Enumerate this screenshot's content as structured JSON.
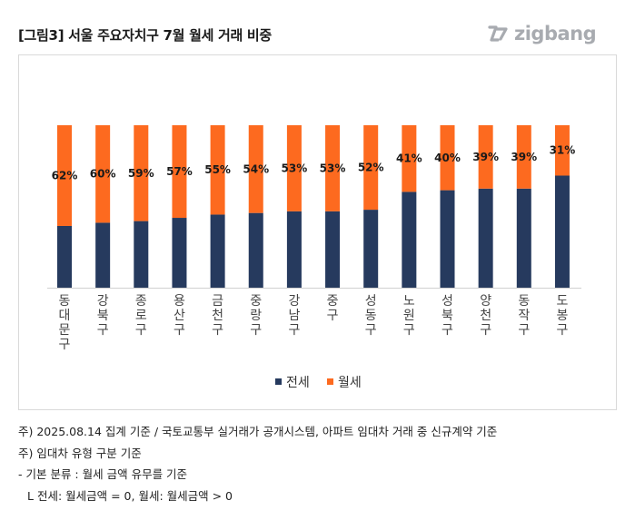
{
  "header": {
    "title": "[그림3] 서울 주요자치구 7월 월세 거래 비중",
    "logo_text": "zigbang"
  },
  "chart_data": {
    "type": "bar",
    "stacked": "percent",
    "categories": [
      "동대문구",
      "강북구",
      "종로구",
      "용산구",
      "금천구",
      "중랑구",
      "강남구",
      "중구",
      "성동구",
      "노원구",
      "성북구",
      "양천구",
      "동작구",
      "도봉구"
    ],
    "series": [
      {
        "name": "전세",
        "color": "#263a5e",
        "values": [
          38,
          40,
          41,
          43,
          45,
          46,
          47,
          47,
          48,
          59,
          60,
          61,
          61,
          69
        ]
      },
      {
        "name": "월세",
        "color": "#fd6a1f",
        "values": [
          62,
          60,
          59,
          57,
          55,
          54,
          53,
          53,
          52,
          41,
          40,
          39,
          39,
          31
        ]
      }
    ],
    "data_labels": [
      "62%",
      "60%",
      "59%",
      "57%",
      "55%",
      "54%",
      "53%",
      "53%",
      "52%",
      "41%",
      "40%",
      "39%",
      "39%",
      "31%"
    ],
    "ylim": [
      0,
      100
    ],
    "grid": false,
    "legend_position": "bottom"
  },
  "notes": [
    "주) 2025.08.14 집계 기준 / 국토교통부 실거래가 공개시스템, 아파트 임대차 거래 중 신규계약 기준",
    "주) 임대차 유형 구분 기준",
    "- 기본 분류 : 월세 금액 유무를 기준",
    "L 전세: 월세금액 = 0, 월세: 월세금액 > 0"
  ]
}
